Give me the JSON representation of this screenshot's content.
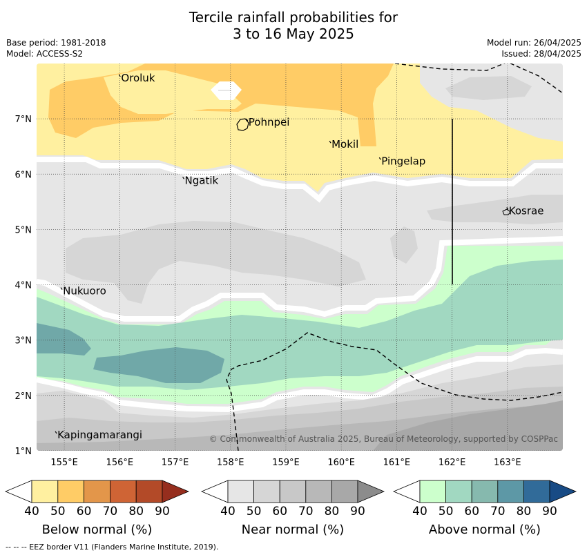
{
  "title": {
    "line1": "Tercile rainfall probabilities for",
    "line2": "3 to 16 May 2025"
  },
  "meta": {
    "base_period": "Base period: 1981-2018",
    "model": "Model: ACCESS-S2",
    "model_run": "Model run: 26/04/2025",
    "issued": "Issued: 28/04/2025"
  },
  "map": {
    "lon_range": [
      154.5,
      164.0
    ],
    "lat_range": [
      1.0,
      8.0
    ],
    "lon_ticks": [
      "155°E",
      "156°E",
      "157°E",
      "158°E",
      "159°E",
      "160°E",
      "161°E",
      "162°E",
      "163°E"
    ],
    "lat_ticks": [
      "1°N",
      "2°N",
      "3°N",
      "4°N",
      "5°N",
      "6°N",
      "7°N"
    ],
    "places": [
      {
        "name": "Oroluk",
        "lon": 156.0,
        "lat": 7.7
      },
      {
        "name": "Pohnpei",
        "lon": 158.3,
        "lat": 6.9
      },
      {
        "name": "Mokil",
        "lon": 159.8,
        "lat": 6.5
      },
      {
        "name": "Pingelap",
        "lon": 160.7,
        "lat": 6.2
      },
      {
        "name": "Ngatik",
        "lon": 157.15,
        "lat": 5.85
      },
      {
        "name": "Kosrae",
        "lon": 163.0,
        "lat": 5.3
      },
      {
        "name": "Nukuoro",
        "lon": 154.95,
        "lat": 3.85
      },
      {
        "name": "Kapingamarangi",
        "lon": 154.85,
        "lat": 1.25
      }
    ],
    "copyright": "© Commonwealth of Australia 2025, Bureau of Meteorology, supported by COSPPac"
  },
  "colorbars": [
    {
      "label": "Below normal (%)",
      "ticks": [
        "40",
        "50",
        "60",
        "70",
        "80",
        "90"
      ],
      "colors": [
        "#fff0a0",
        "#ffcc66",
        "#e3964a",
        "#cf6435",
        "#b34a28",
        "#962e1e"
      ]
    },
    {
      "label": "Near normal (%)",
      "ticks": [
        "40",
        "50",
        "60",
        "70",
        "80",
        "90"
      ],
      "colors": [
        "#e6e6e6",
        "#d6d6d6",
        "#c8c8c8",
        "#b8b8b8",
        "#a8a8a8",
        "#8c8c8c"
      ]
    },
    {
      "label": "Above normal (%)",
      "ticks": [
        "40",
        "50",
        "60",
        "70",
        "80",
        "90"
      ],
      "colors": [
        "#ccffcc",
        "#a1d8c1",
        "#86b9ae",
        "#5d98a6",
        "#316b99",
        "#184b85"
      ]
    }
  ],
  "footer": "--  --  -- EEZ border V11 (Flanders Marine Institute, 2019)."
}
